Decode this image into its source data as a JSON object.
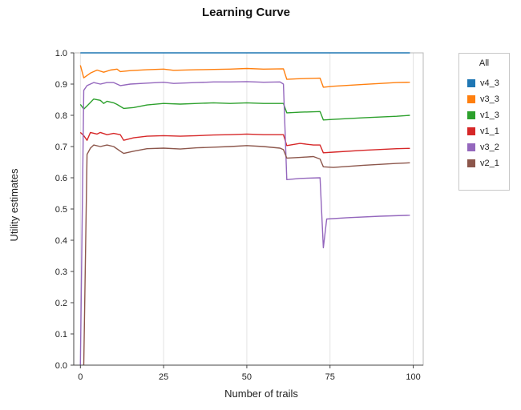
{
  "chart_data": {
    "type": "line",
    "title": "Learning Curve",
    "xlabel": "Number of trails",
    "ylabel": "Utility estimates",
    "xlim": [
      -2,
      103
    ],
    "ylim": [
      0,
      1.0
    ],
    "x_ticks": [
      0,
      25,
      50,
      75,
      100
    ],
    "y_ticks": [
      0.0,
      0.1,
      0.2,
      0.3,
      0.4,
      0.5,
      0.6,
      0.7,
      0.8,
      0.9,
      1.0
    ],
    "grid": "vertical",
    "legend": {
      "title": "All",
      "position": "right"
    },
    "series": [
      {
        "name": "v4_3",
        "color": "#1f77b4",
        "points": [
          [
            0,
            1.0
          ],
          [
            25,
            1.0
          ],
          [
            50,
            1.0
          ],
          [
            75,
            1.0
          ],
          [
            99,
            1.0
          ]
        ]
      },
      {
        "name": "v3_3",
        "color": "#ff7f0e",
        "points": [
          [
            0,
            0.96
          ],
          [
            1,
            0.92
          ],
          [
            3,
            0.935
          ],
          [
            5,
            0.945
          ],
          [
            7,
            0.938
          ],
          [
            9,
            0.945
          ],
          [
            11,
            0.948
          ],
          [
            12,
            0.94
          ],
          [
            15,
            0.943
          ],
          [
            20,
            0.946
          ],
          [
            25,
            0.948
          ],
          [
            28,
            0.944
          ],
          [
            35,
            0.946
          ],
          [
            45,
            0.948
          ],
          [
            50,
            0.95
          ],
          [
            55,
            0.948
          ],
          [
            61,
            0.949
          ],
          [
            62,
            0.915
          ],
          [
            65,
            0.917
          ],
          [
            72,
            0.919
          ],
          [
            73,
            0.89
          ],
          [
            76,
            0.893
          ],
          [
            85,
            0.899
          ],
          [
            95,
            0.905
          ],
          [
            99,
            0.906
          ]
        ]
      },
      {
        "name": "v1_3",
        "color": "#2ca02c",
        "points": [
          [
            0,
            0.835
          ],
          [
            1,
            0.82
          ],
          [
            2,
            0.83
          ],
          [
            4,
            0.852
          ],
          [
            6,
            0.848
          ],
          [
            7,
            0.838
          ],
          [
            8,
            0.845
          ],
          [
            10,
            0.84
          ],
          [
            11,
            0.835
          ],
          [
            13,
            0.822
          ],
          [
            16,
            0.825
          ],
          [
            20,
            0.833
          ],
          [
            25,
            0.838
          ],
          [
            30,
            0.836
          ],
          [
            35,
            0.838
          ],
          [
            40,
            0.84
          ],
          [
            45,
            0.838
          ],
          [
            50,
            0.84
          ],
          [
            55,
            0.838
          ],
          [
            61,
            0.838
          ],
          [
            62,
            0.808
          ],
          [
            66,
            0.81
          ],
          [
            72,
            0.812
          ],
          [
            73,
            0.785
          ],
          [
            76,
            0.787
          ],
          [
            85,
            0.792
          ],
          [
            95,
            0.797
          ],
          [
            99,
            0.8
          ]
        ]
      },
      {
        "name": "v1_1",
        "color": "#d62728",
        "points": [
          [
            0,
            0.745
          ],
          [
            1,
            0.735
          ],
          [
            2,
            0.72
          ],
          [
            3,
            0.745
          ],
          [
            5,
            0.74
          ],
          [
            6,
            0.745
          ],
          [
            8,
            0.738
          ],
          [
            10,
            0.742
          ],
          [
            12,
            0.738
          ],
          [
            13,
            0.72
          ],
          [
            16,
            0.728
          ],
          [
            20,
            0.733
          ],
          [
            25,
            0.735
          ],
          [
            30,
            0.733
          ],
          [
            35,
            0.735
          ],
          [
            40,
            0.737
          ],
          [
            45,
            0.738
          ],
          [
            50,
            0.74
          ],
          [
            55,
            0.738
          ],
          [
            61,
            0.738
          ],
          [
            62,
            0.703
          ],
          [
            66,
            0.71
          ],
          [
            70,
            0.705
          ],
          [
            72,
            0.705
          ],
          [
            73,
            0.68
          ],
          [
            76,
            0.682
          ],
          [
            85,
            0.688
          ],
          [
            95,
            0.693
          ],
          [
            99,
            0.694
          ]
        ]
      },
      {
        "name": "v3_2",
        "color": "#9467bd",
        "points": [
          [
            0,
            0.0
          ],
          [
            1,
            0.88
          ],
          [
            2,
            0.895
          ],
          [
            4,
            0.905
          ],
          [
            6,
            0.9
          ],
          [
            8,
            0.905
          ],
          [
            10,
            0.905
          ],
          [
            12,
            0.895
          ],
          [
            15,
            0.9
          ],
          [
            20,
            0.903
          ],
          [
            25,
            0.906
          ],
          [
            28,
            0.902
          ],
          [
            35,
            0.905
          ],
          [
            40,
            0.907
          ],
          [
            45,
            0.907
          ],
          [
            50,
            0.908
          ],
          [
            55,
            0.906
          ],
          [
            60,
            0.907
          ],
          [
            61,
            0.9
          ],
          [
            62,
            0.594
          ],
          [
            66,
            0.598
          ],
          [
            72,
            0.6
          ],
          [
            73,
            0.376
          ],
          [
            74,
            0.468
          ],
          [
            80,
            0.472
          ],
          [
            90,
            0.477
          ],
          [
            99,
            0.48
          ]
        ]
      },
      {
        "name": "v2_1",
        "color": "#8c564b",
        "points": [
          [
            1,
            0.0
          ],
          [
            2,
            0.675
          ],
          [
            3,
            0.695
          ],
          [
            4,
            0.705
          ],
          [
            6,
            0.7
          ],
          [
            8,
            0.705
          ],
          [
            10,
            0.7
          ],
          [
            12,
            0.685
          ],
          [
            13,
            0.678
          ],
          [
            16,
            0.685
          ],
          [
            20,
            0.693
          ],
          [
            25,
            0.695
          ],
          [
            30,
            0.692
          ],
          [
            35,
            0.696
          ],
          [
            40,
            0.698
          ],
          [
            45,
            0.7
          ],
          [
            50,
            0.703
          ],
          [
            55,
            0.7
          ],
          [
            60,
            0.695
          ],
          [
            61,
            0.69
          ],
          [
            62,
            0.663
          ],
          [
            66,
            0.665
          ],
          [
            70,
            0.668
          ],
          [
            72,
            0.66
          ],
          [
            73,
            0.635
          ],
          [
            76,
            0.633
          ],
          [
            85,
            0.64
          ],
          [
            95,
            0.646
          ],
          [
            99,
            0.648
          ]
        ]
      }
    ]
  }
}
